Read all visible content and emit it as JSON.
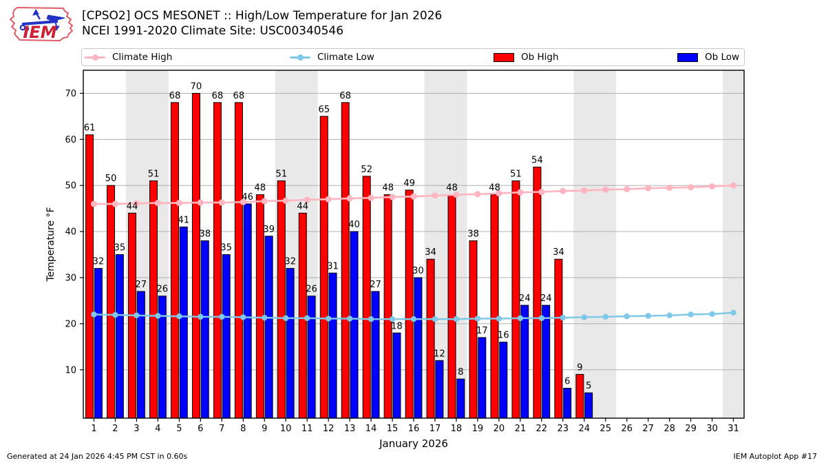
{
  "header": {
    "title_line1": "[CPSO2] OCS MESONET :: High/Low Temperature for Jan 2026",
    "title_line2": "NCEI 1991-2020 Climate Site: USC00340546",
    "logo_text": "IEM"
  },
  "legend": [
    {
      "label": "Climate High",
      "swatch": "line-marker",
      "color": "#ffb6c1"
    },
    {
      "label": "Climate Low",
      "swatch": "line-marker",
      "color": "#7ec8e8"
    },
    {
      "label": "Ob High",
      "swatch": "rect",
      "color": "#ff0000"
    },
    {
      "label": "Ob Low",
      "swatch": "rect",
      "color": "#0000ff"
    }
  ],
  "footer": {
    "left": "Generated at 24 Jan 2026 4:45 PM CST in 0.60s",
    "right": "IEM Autoplot App #17"
  },
  "chart_data": {
    "type": "bar",
    "title": "[CPSO2] OCS MESONET :: High/Low Temperature for Jan 2026",
    "subtitle": "NCEI 1991-2020 Climate Site: USC00340546",
    "xlabel": "January 2026",
    "ylabel": "Temperature °F",
    "x": [
      1,
      2,
      3,
      4,
      5,
      6,
      7,
      8,
      9,
      10,
      11,
      12,
      13,
      14,
      15,
      16,
      17,
      18,
      19,
      20,
      21,
      22,
      23,
      24,
      25,
      26,
      27,
      28,
      29,
      30,
      31
    ],
    "yticks": [
      10,
      20,
      30,
      40,
      50,
      60,
      70
    ],
    "ylim": [
      -0.5,
      75
    ],
    "xlim": [
      0.5,
      31.5
    ],
    "grid": "horizontal",
    "legend_position": "top",
    "weekend_bands": [
      [
        2.5,
        4.5
      ],
      [
        9.5,
        11.5
      ],
      [
        16.5,
        18.5
      ],
      [
        23.5,
        25.5
      ],
      [
        30.5,
        31.5
      ]
    ],
    "band_color": "#e9e9e9",
    "grid_color": "#b0b0b0",
    "series": [
      {
        "name": "Ob High",
        "type": "bar",
        "color": "#ff0000",
        "values": [
          61,
          50,
          44,
          51,
          68,
          70,
          68,
          68,
          48,
          51,
          44,
          65,
          68,
          52,
          48,
          49,
          34,
          48,
          38,
          48,
          51,
          54,
          34,
          9,
          null,
          null,
          null,
          null,
          null,
          null,
          null
        ]
      },
      {
        "name": "Ob Low",
        "type": "bar",
        "color": "#0000ff",
        "values": [
          32,
          35,
          27,
          26,
          41,
          38,
          35,
          46,
          39,
          32,
          26,
          31,
          40,
          27,
          18,
          30,
          12,
          8,
          17,
          16,
          24,
          24,
          6,
          5,
          null,
          null,
          null,
          null,
          null,
          null,
          null
        ]
      },
      {
        "name": "Climate High",
        "type": "line",
        "color": "#ffb6c1",
        "values": [
          46.0,
          46.0,
          46.1,
          46.2,
          46.2,
          46.3,
          46.3,
          46.4,
          46.6,
          46.7,
          46.9,
          47.0,
          47.2,
          47.3,
          47.5,
          47.6,
          47.8,
          48.0,
          48.1,
          48.3,
          48.5,
          48.6,
          48.8,
          48.9,
          49.1,
          49.2,
          49.4,
          49.5,
          49.6,
          49.8,
          50.0
        ]
      },
      {
        "name": "Climate Low",
        "type": "line",
        "color": "#7ec8e8",
        "values": [
          22.0,
          21.9,
          21.8,
          21.7,
          21.6,
          21.5,
          21.5,
          21.4,
          21.3,
          21.2,
          21.2,
          21.1,
          21.1,
          21.0,
          21.0,
          21.0,
          21.0,
          21.0,
          21.1,
          21.1,
          21.2,
          21.2,
          21.3,
          21.4,
          21.5,
          21.6,
          21.7,
          21.8,
          22.0,
          22.1,
          22.4
        ]
      }
    ]
  }
}
